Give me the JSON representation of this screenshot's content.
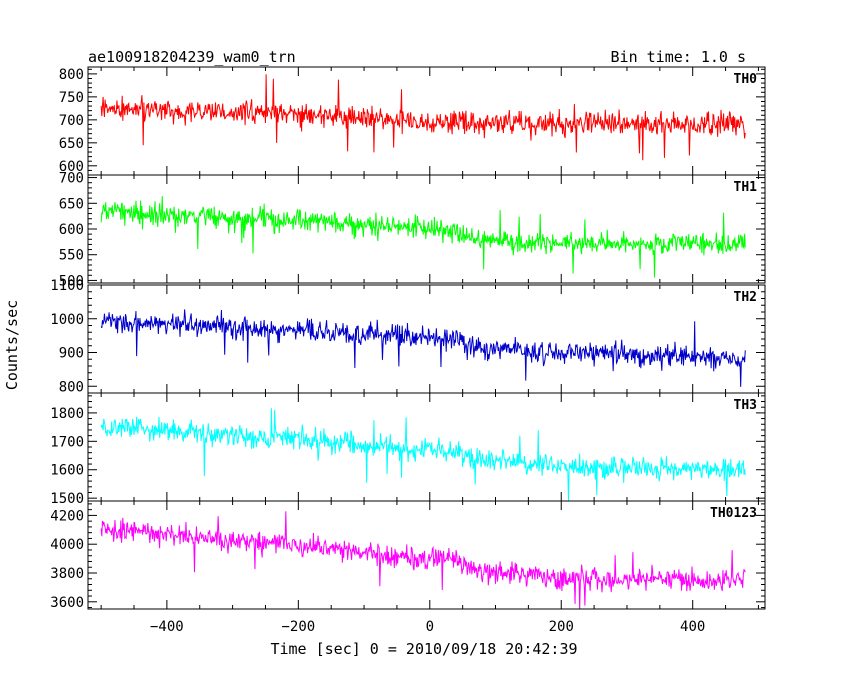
{
  "chart_data": {
    "type": "line",
    "title": "ae100918204239_wam0_trn",
    "subtitle": "Bin time: 1.0 s",
    "xlabel": "Time [sec] 0 = 2010/09/18 20:42:39",
    "ylabel": "Counts/sec",
    "xlim": [
      -520,
      510
    ],
    "data_xrange": [
      -500,
      480
    ],
    "x_ticks": [
      -400,
      -200,
      0,
      200,
      400
    ],
    "x_tick_labels": [
      "−400",
      "−200",
      "0",
      "200",
      "400"
    ],
    "panels": [
      {
        "name": "TH0",
        "color": "#ff0000",
        "ylim": [
          580,
          815
        ],
        "y_ticks": [
          600,
          650,
          700,
          750,
          800
        ],
        "y_tick_labels": [
          "600",
          "650",
          "700",
          "750",
          "800"
        ],
        "noise": 42,
        "trend": [
          [
            -500,
            725
          ],
          [
            -200,
            712
          ],
          [
            0,
            695
          ],
          [
            200,
            690
          ],
          [
            480,
            693
          ]
        ]
      },
      {
        "name": "TH1",
        "color": "#00ff00",
        "ylim": [
          495,
          705
        ],
        "y_ticks": [
          500,
          550,
          600,
          650,
          700
        ],
        "y_tick_labels": [
          "500",
          "550",
          "600",
          "650",
          "700"
        ],
        "noise": 36,
        "trend": [
          [
            -500,
            635
          ],
          [
            -200,
            615
          ],
          [
            0,
            600
          ],
          [
            40,
            602
          ],
          [
            60,
            580
          ],
          [
            200,
            572
          ],
          [
            480,
            570
          ]
        ]
      },
      {
        "name": "TH2",
        "color": "#0000cc",
        "ylim": [
          780,
          1100
        ],
        "y_ticks": [
          800,
          900,
          1000,
          1100
        ],
        "y_tick_labels": [
          "800",
          "900",
          "1000",
          "1100"
        ],
        "noise": 55,
        "trend": [
          [
            -500,
            995
          ],
          [
            -200,
            965
          ],
          [
            0,
            945
          ],
          [
            40,
            948
          ],
          [
            60,
            918
          ],
          [
            200,
            898
          ],
          [
            480,
            885
          ]
        ]
      },
      {
        "name": "TH3",
        "color": "#00ffff",
        "ylim": [
          1490,
          1870
        ],
        "y_ticks": [
          1500,
          1600,
          1700,
          1800
        ],
        "y_tick_labels": [
          "1500",
          "1600",
          "1700",
          "1800"
        ],
        "noise": 65,
        "trend": [
          [
            -500,
            1755
          ],
          [
            -200,
            1705
          ],
          [
            0,
            1670
          ],
          [
            40,
            1672
          ],
          [
            60,
            1640
          ],
          [
            200,
            1610
          ],
          [
            480,
            1600
          ]
        ]
      },
      {
        "name": "TH0123",
        "color": "#ff00ff",
        "ylim": [
          3550,
          4300
        ],
        "y_ticks": [
          3600,
          3800,
          4000,
          4200
        ],
        "y_tick_labels": [
          "3600",
          "3800",
          "4000",
          "4200"
        ],
        "noise": 125,
        "trend": [
          [
            -500,
            4110
          ],
          [
            -200,
            3990
          ],
          [
            0,
            3900
          ],
          [
            40,
            3905
          ],
          [
            60,
            3830
          ],
          [
            200,
            3760
          ],
          [
            480,
            3745
          ]
        ]
      }
    ]
  }
}
